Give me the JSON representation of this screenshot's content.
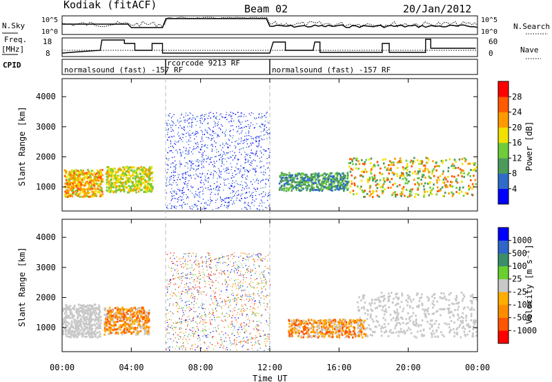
{
  "header": {
    "station": "Kodiak (fitACF)",
    "beam": "Beam 02",
    "date": "20/Jan/2012"
  },
  "params": {
    "nsky_label": "N.Sky",
    "nsearch_label": "N.Search",
    "freq_label_1": "Freq.",
    "freq_label_2": "[MHz]",
    "nave_label": "Nave",
    "cpid_label": "CPID",
    "left_ticks_top": [
      "10^5",
      "10^0"
    ],
    "right_ticks_top": [
      "10^5",
      "10^0"
    ],
    "freq_ticks": [
      "18",
      "8"
    ],
    "nave_ticks": [
      "60",
      "0"
    ],
    "cpid_segments": [
      {
        "label": "normalsound (fast) -157 RF",
        "start": 0,
        "end": 6
      },
      {
        "label": "rcorcode 9213 RF",
        "start": 6,
        "end": 12
      },
      {
        "label": "normalsound (fast) -157 RF",
        "start": 12,
        "end": 24
      }
    ]
  },
  "axes": {
    "xlabel": "Time UT",
    "ylabel": "Slant Range [km]",
    "xticks": [
      "00:00",
      "04:00",
      "08:00",
      "12:00",
      "16:00",
      "20:00",
      "00:00"
    ],
    "yticks": [
      "1000",
      "2000",
      "3000",
      "4000"
    ]
  },
  "colorbars": {
    "power": {
      "label": "Power [dB]",
      "ticks": [
        "4",
        "8",
        "12",
        "16",
        "20",
        "24",
        "28"
      ]
    },
    "velocity": {
      "label": "Velocity [m s⁻¹]",
      "ticks": [
        "-1000",
        "-500",
        "-100",
        "-25",
        "25",
        "100",
        "500",
        "1000"
      ]
    }
  },
  "colors": {
    "power_scale": [
      "#0000ff",
      "#2f6bc9",
      "#4b9b5b",
      "#6fcc3a",
      "#f2e100",
      "#ff9b00",
      "#ff5a00",
      "#ff0000"
    ],
    "velocity_scale": [
      "#ff0000",
      "#ff5500",
      "#ff8c00",
      "#ffae00",
      "#c8c8c8",
      "#69d12f",
      "#3a8e6a",
      "#2f66c9",
      "#0000ff"
    ],
    "ground_scatter": "#c8c8c8"
  },
  "chart_data": [
    {
      "type": "heatmap",
      "title": "Power",
      "x": {
        "unit": "hours UT",
        "range": [
          0,
          24
        ]
      },
      "y": {
        "unit": "km",
        "range": [
          200,
          4600
        ]
      },
      "z": {
        "unit": "dB",
        "range": [
          0,
          32
        ]
      },
      "regions": [
        {
          "t": [
            0.1,
            2.3
          ],
          "r": [
            700,
            1600
          ],
          "db": [
            14,
            26
          ]
        },
        {
          "t": [
            2.5,
            5.2
          ],
          "r": [
            850,
            1700
          ],
          "db": [
            12,
            22
          ]
        },
        {
          "t": [
            6.0,
            12.0
          ],
          "r": [
            250,
            3500
          ],
          "db": [
            2,
            6
          ]
        },
        {
          "t": [
            12.5,
            16.5
          ],
          "r": [
            900,
            1500
          ],
          "db": [
            6,
            14
          ]
        },
        {
          "t": [
            16.5,
            23.9
          ],
          "r": [
            700,
            2000
          ],
          "db": [
            8,
            28
          ]
        }
      ]
    },
    {
      "type": "heatmap",
      "title": "Velocity",
      "x": {
        "unit": "hours UT",
        "range": [
          0,
          24
        ]
      },
      "y": {
        "unit": "km",
        "range": [
          200,
          4600
        ]
      },
      "z": {
        "unit": "m s-1",
        "range": [
          -1000,
          1000
        ]
      },
      "regions": [
        {
          "t": [
            0.0,
            2.2
          ],
          "r": [
            700,
            1800
          ],
          "v": [
            -25,
            25
          ]
        },
        {
          "t": [
            2.4,
            5.0
          ],
          "r": [
            800,
            1700
          ],
          "v": [
            -500,
            -100
          ]
        },
        {
          "t": [
            6.0,
            12.0
          ],
          "r": [
            250,
            3500
          ],
          "v": [
            -1000,
            500
          ]
        },
        {
          "t": [
            13.0,
            17.5
          ],
          "r": [
            700,
            1300
          ],
          "v": [
            -500,
            -25
          ]
        },
        {
          "t": [
            17.0,
            23.9
          ],
          "r": [
            700,
            2200
          ],
          "v": [
            -25,
            25
          ]
        }
      ]
    }
  ]
}
